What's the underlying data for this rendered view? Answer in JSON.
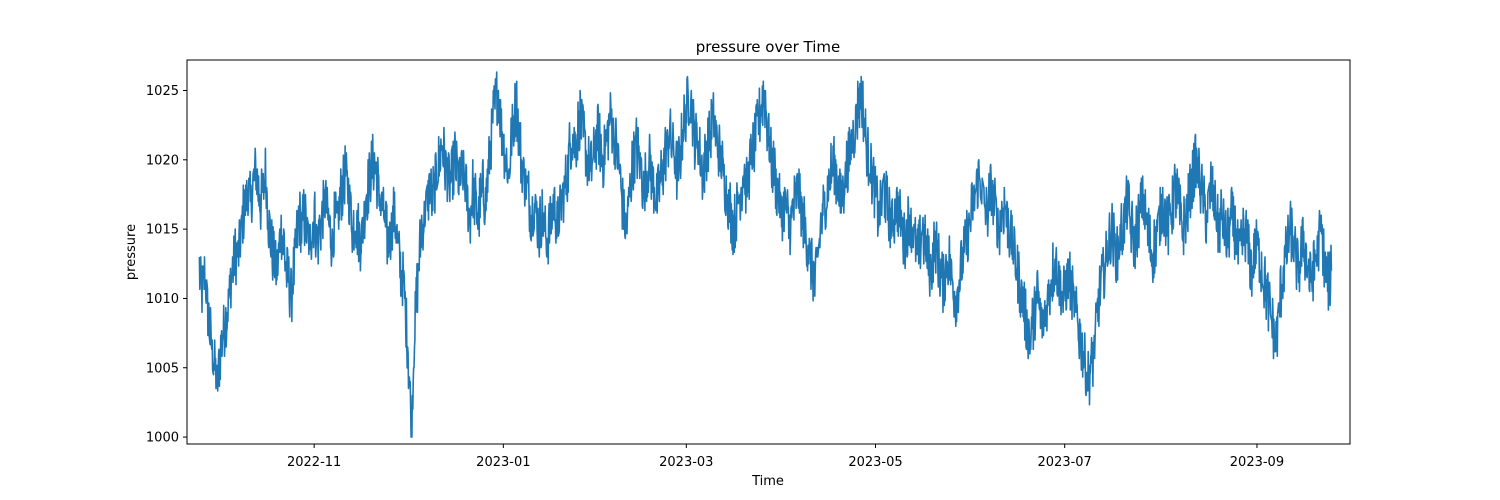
{
  "chart_data": {
    "type": "line",
    "title": "pressure over Time",
    "xlabel": "Time",
    "ylabel": "pressure",
    "xlim": [
      "2022-09-21",
      "2023-10-01"
    ],
    "ylim": [
      999.5,
      1027.2
    ],
    "x_ticks": [
      "2022-11",
      "2023-01",
      "2023-03",
      "2023-05",
      "2023-07",
      "2023-09"
    ],
    "y_ticks": [
      1000,
      1005,
      1010,
      1015,
      1020,
      1025
    ],
    "grid": false,
    "line_color": "#1f77b4",
    "series": [
      {
        "x_start": "2022-09-25",
        "x_end": "2023-09-25",
        "values_approx": [
          1012,
          1010,
          1012,
          1010,
          1008,
          1006,
          1005,
          1004,
          1006,
          1007,
          1008,
          1009,
          1011,
          1012,
          1013,
          1013,
          1014,
          1016,
          1017,
          1018,
          1017,
          1018,
          1019,
          1018,
          1017,
          1018,
          1019,
          1016,
          1014,
          1013,
          1012,
          1013,
          1015,
          1014,
          1012,
          1011,
          1010,
          1012,
          1014,
          1016,
          1015,
          1016,
          1015,
          1014,
          1015,
          1016,
          1014,
          1015,
          1016,
          1017,
          1016,
          1015,
          1014,
          1016,
          1015,
          1017,
          1018,
          1019,
          1018,
          1017,
          1015,
          1016,
          1015,
          1014,
          1015,
          1017,
          1018,
          1019,
          1020,
          1019,
          1018,
          1017,
          1016,
          1015,
          1014,
          1015,
          1016,
          1015,
          1013,
          1012,
          1011,
          1008,
          1005,
          1001,
          1007,
          1010,
          1013,
          1015,
          1016,
          1017,
          1018,
          1017,
          1018,
          1019,
          1020,
          1021,
          1020,
          1019,
          1018,
          1019,
          1020,
          1019,
          1018,
          1019,
          1018,
          1017,
          1016,
          1018,
          1017,
          1016,
          1017,
          1018,
          1017,
          1019,
          1021,
          1023,
          1024,
          1025,
          1023,
          1021,
          1020,
          1019,
          1021,
          1023,
          1024,
          1022,
          1020,
          1019,
          1018,
          1017,
          1016,
          1017,
          1016,
          1015,
          1016,
          1015,
          1014,
          1015,
          1016,
          1017,
          1015,
          1016,
          1017,
          1018,
          1019,
          1021,
          1022,
          1021,
          1022,
          1023,
          1022,
          1021,
          1020,
          1019,
          1020,
          1021,
          1022,
          1021,
          1020,
          1021,
          1022,
          1023,
          1022,
          1021,
          1020,
          1018,
          1016,
          1015,
          1017,
          1019,
          1020,
          1021,
          1020,
          1019,
          1018,
          1019,
          1020,
          1019,
          1018,
          1017,
          1018,
          1019,
          1020,
          1021,
          1022,
          1021,
          1020,
          1019,
          1020,
          1022,
          1023,
          1024,
          1025,
          1023,
          1021,
          1022,
          1020,
          1019,
          1020,
          1021,
          1022,
          1023,
          1022,
          1021,
          1020,
          1019,
          1018,
          1017,
          1016,
          1015,
          1016,
          1017,
          1018,
          1019,
          1018,
          1019,
          1020,
          1021,
          1022,
          1023,
          1024,
          1025,
          1023,
          1021,
          1020,
          1019,
          1018,
          1017,
          1016,
          1017,
          1016,
          1015,
          1016,
          1017,
          1018,
          1017,
          1016,
          1015,
          1014,
          1013,
          1012,
          1011,
          1013,
          1015,
          1016,
          1017,
          1018,
          1019,
          1020,
          1019,
          1018,
          1017,
          1018,
          1019,
          1020,
          1021,
          1022,
          1023,
          1024,
          1025,
          1023,
          1021,
          1020,
          1019,
          1018,
          1017,
          1016,
          1017,
          1018,
          1017,
          1016,
          1015,
          1016,
          1017,
          1016,
          1015,
          1014,
          1015,
          1016,
          1015,
          1014,
          1013,
          1014,
          1015,
          1014,
          1013,
          1012,
          1013,
          1014,
          1013,
          1012,
          1011,
          1012,
          1013,
          1012,
          1011,
          1010,
          1011,
          1012,
          1013,
          1014,
          1015,
          1016,
          1017,
          1018,
          1019,
          1018,
          1017,
          1016,
          1017,
          1018,
          1017,
          1016,
          1015,
          1016,
          1017,
          1016,
          1015,
          1014,
          1013,
          1012,
          1011,
          1010,
          1009,
          1008,
          1007,
          1008,
          1009,
          1010,
          1009,
          1008,
          1009,
          1010,
          1011,
          1012,
          1013,
          1012,
          1011,
          1010,
          1011,
          1012,
          1011,
          1010,
          1009,
          1008,
          1007,
          1006,
          1005,
          1004,
          1005,
          1006,
          1008,
          1010,
          1011,
          1012,
          1013,
          1014,
          1015,
          1014,
          1013,
          1014,
          1015,
          1016,
          1017,
          1016,
          1015,
          1014,
          1015,
          1016,
          1017,
          1016,
          1015,
          1014,
          1013,
          1014,
          1015,
          1016,
          1017,
          1016,
          1015,
          1016,
          1017,
          1018,
          1017,
          1016,
          1015,
          1016,
          1017,
          1018,
          1019,
          1020,
          1019,
          1018,
          1017,
          1016,
          1017,
          1018,
          1017,
          1016,
          1015,
          1016,
          1015,
          1014,
          1015,
          1016,
          1015,
          1014,
          1013,
          1014,
          1015,
          1014,
          1013,
          1012,
          1013,
          1014,
          1013,
          1012,
          1011,
          1010,
          1009,
          1008,
          1007,
          1008,
          1010,
          1012,
          1013,
          1014,
          1015,
          1014,
          1013,
          1012,
          1013,
          1014,
          1013,
          1012,
          1011,
          1012,
          1013,
          1014,
          1015,
          1013,
          1012,
          1011,
          1012
        ]
      }
    ]
  }
}
